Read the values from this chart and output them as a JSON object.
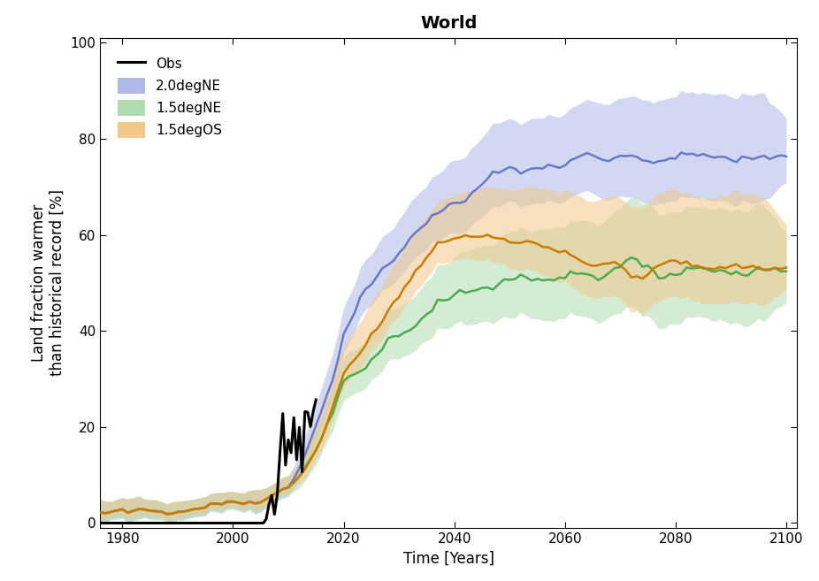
{
  "title": "World",
  "xlabel": "Time [Years]",
  "ylabel": "Land fraction warmer\nthan historical record [%]",
  "xlim": [
    1976,
    2102
  ],
  "ylim": [
    -1,
    101
  ],
  "xticks": [
    1980,
    2000,
    2020,
    2040,
    2060,
    2080,
    2100
  ],
  "yticks": [
    0,
    20,
    40,
    60,
    80,
    100
  ],
  "scenario_colors": {
    "2.0degNE": "#6b78c8",
    "1.5degNE": "#4daa4d",
    "1.5degOS": "#cc7a00"
  },
  "scenario_fill_colors": {
    "2.0degNE": "#b0b8e8",
    "1.5degNE": "#b0ddb0",
    "1.5degOS": "#f0c88a"
  },
  "obs_color": "#000000",
  "background_color": "#ffffff",
  "title_fontsize": 14,
  "label_fontsize": 12,
  "tick_fontsize": 11
}
